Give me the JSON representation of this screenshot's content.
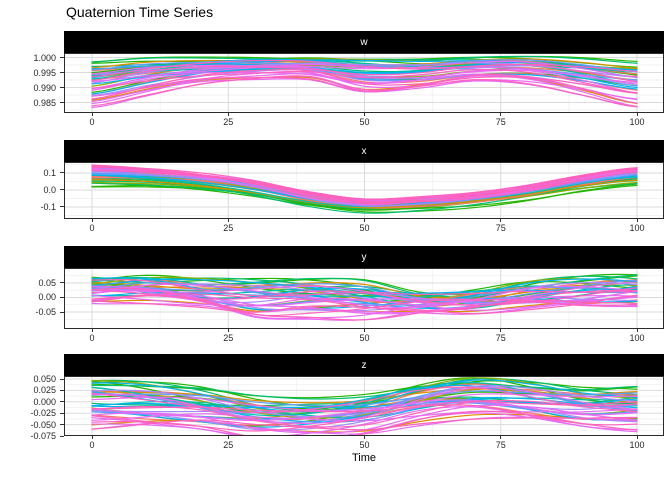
{
  "title": "Quaternion Time Series",
  "chart_data": {
    "type": "line",
    "title": "Quaternion Time Series",
    "xlabel": "Time",
    "xlim": [
      0,
      100
    ],
    "x_ticks": [
      0,
      25,
      50,
      75,
      100
    ],
    "grid": "major+minor",
    "legend": "none",
    "strip_style": {
      "background": "#000000",
      "text": "#ffffff"
    },
    "palette": [
      "#F8766D",
      "#DB8E00",
      "#B79F00",
      "#8CAB00",
      "#24B700",
      "#00BE70",
      "#00C1AB",
      "#00B2F3",
      "#619CFF",
      "#A58AFF",
      "#E76BF3",
      "#FF62BC"
    ],
    "n_series": 44,
    "series_model": "value(t) = mean(t) + dev*envelope(t) + a*wiggle_amp*sin(2*pi*wiggle_freq*t/100 + p + wiggle_phase); dev = series.d or series.e per facet dev_key; envelope = up if dev>=0 else dn",
    "facets": [
      {
        "label": "w",
        "ylim": [
          0.9815,
          1.0015
        ],
        "tick_values": [
          1.0,
          0.995,
          0.99,
          0.985
        ],
        "tick_labels": [
          "1.000",
          "0.995",
          "0.990",
          "0.985"
        ],
        "dev_key": "d",
        "mean": [
          0.9925,
          0.995,
          0.9966,
          0.9973,
          0.9974,
          0.996,
          0.9958,
          0.997,
          0.9971,
          0.9952,
          0.9927
        ],
        "up": [
          0.006,
          0.0045,
          0.0032,
          0.0028,
          0.0026,
          0.0038,
          0.0036,
          0.0028,
          0.0028,
          0.0044,
          0.0062
        ],
        "dn": [
          0.0075,
          0.006,
          0.0042,
          0.0038,
          0.004,
          0.007,
          0.0055,
          0.0038,
          0.0045,
          0.0062,
          0.008
        ],
        "wiggle_amp": 0.0009,
        "wiggle_freq": 1.4,
        "wiggle_phase": 0.0
      },
      {
        "label": "x",
        "ylim": [
          -0.1706,
          0.1647
        ],
        "tick_values": [
          0.1,
          0.0,
          -0.1
        ],
        "tick_labels": [
          "0.1",
          "0.0",
          "-0.1"
        ],
        "dev_key": "e",
        "mean": [
          0.085,
          0.075,
          0.05,
          0.005,
          -0.055,
          -0.09,
          -0.08,
          -0.055,
          -0.015,
          0.04,
          0.08
        ],
        "up": [
          0.055,
          0.05,
          0.045,
          0.045,
          0.04,
          0.03,
          0.03,
          0.03,
          0.035,
          0.04,
          0.05
        ],
        "dn": [
          0.06,
          0.055,
          0.05,
          0.045,
          0.04,
          0.038,
          0.035,
          0.035,
          0.035,
          0.04,
          0.05
        ],
        "wiggle_amp": 0.011,
        "wiggle_freq": 1.1,
        "wiggle_phase": 1.0
      },
      {
        "label": "y",
        "ylim": [
          -0.1086,
          0.1017
        ],
        "tick_values": [
          0.05,
          0.0,
          -0.05
        ],
        "tick_labels": [
          "0.05",
          "0.00",
          "-0.05"
        ],
        "dev_key": "d",
        "mean": [
          0.03,
          0.035,
          0.02,
          0.01,
          0.01,
          0.0,
          -0.015,
          -0.01,
          0.01,
          0.02,
          0.025
        ],
        "up": [
          0.04,
          0.035,
          0.04,
          0.045,
          0.045,
          0.05,
          0.03,
          0.03,
          0.04,
          0.045,
          0.045
        ],
        "dn": [
          0.035,
          0.04,
          0.045,
          0.07,
          0.06,
          0.05,
          0.025,
          0.03,
          0.04,
          0.045,
          0.035
        ],
        "wiggle_amp": 0.02,
        "wiggle_freq": 1.6,
        "wiggle_phase": 2.5
      },
      {
        "label": "z",
        "ylim": [
          -0.075,
          0.0566
        ],
        "tick_values": [
          0.05,
          0.025,
          0.0,
          -0.025,
          -0.05,
          -0.075
        ],
        "tick_labels": [
          "0.050",
          "0.025",
          "0.000",
          "-0.025",
          "-0.050",
          "-0.075"
        ],
        "dev_key": "d",
        "mean": [
          0.005,
          0.0,
          -0.012,
          -0.028,
          -0.03,
          -0.02,
          0.005,
          0.02,
          0.01,
          -0.005,
          -0.008
        ],
        "up": [
          0.045,
          0.042,
          0.04,
          0.035,
          0.032,
          0.035,
          0.035,
          0.032,
          0.03,
          0.03,
          0.035
        ],
        "dn": [
          0.058,
          0.05,
          0.038,
          0.035,
          0.035,
          0.04,
          0.045,
          0.05,
          0.045,
          0.04,
          0.04
        ],
        "wiggle_amp": 0.013,
        "wiggle_freq": 1.4,
        "wiggle_phase": 4.2
      }
    ],
    "series": [
      {
        "c": 4,
        "d": 0.95,
        "e": -0.55,
        "p": 0.5,
        "a": 0.7
      },
      {
        "c": 4,
        "d": 0.8,
        "e": -0.75,
        "p": 2.1,
        "a": 1.0
      },
      {
        "c": 4,
        "d": 0.55,
        "e": -0.9,
        "p": 4.0,
        "a": 1.2
      },
      {
        "c": 4,
        "d": 0.3,
        "e": -0.45,
        "p": 1.2,
        "a": 0.8
      },
      {
        "c": 4,
        "d": -0.4,
        "e": -1.0,
        "p": 5.0,
        "a": 1.3
      },
      {
        "c": 5,
        "d": 0.9,
        "e": -0.35,
        "p": 0.9,
        "a": 0.8
      },
      {
        "c": 5,
        "d": 0.7,
        "e": -0.6,
        "p": 2.8,
        "a": 1.1
      },
      {
        "c": 5,
        "d": 0.45,
        "e": -0.2,
        "p": 4.6,
        "a": 0.9
      },
      {
        "c": 5,
        "d": 0.2,
        "e": -0.8,
        "p": 0.2,
        "a": 1.4
      },
      {
        "c": 3,
        "d": 0.65,
        "e": -0.5,
        "p": 3.3,
        "a": 1.0
      },
      {
        "c": 3,
        "d": -0.2,
        "e": -0.15,
        "p": 5.7,
        "a": 1.2
      },
      {
        "c": 2,
        "d": 0.1,
        "e": 0.05,
        "p": 2.5,
        "a": 0.9
      },
      {
        "c": 0,
        "d": 0.4,
        "e": 0.45,
        "p": 1.8,
        "a": 0.8
      },
      {
        "c": 0,
        "d": 0.15,
        "e": 0.1,
        "p": 3.9,
        "a": 1.1
      },
      {
        "c": 0,
        "d": -0.55,
        "e": -0.25,
        "p": 5.4,
        "a": 0.9
      },
      {
        "c": 1,
        "d": 0.6,
        "e": 0.3,
        "p": 0.7,
        "a": 0.8
      },
      {
        "c": 1,
        "d": -0.95,
        "e": -0.4,
        "p": 2.0,
        "a": 0.5
      },
      {
        "c": 6,
        "d": 0.35,
        "e": 0.2,
        "p": 4.3,
        "a": 1.0
      },
      {
        "c": 6,
        "d": -0.1,
        "e": -0.1,
        "p": 1.5,
        "a": 1.2
      },
      {
        "c": 7,
        "d": 0.6,
        "e": 0.85,
        "p": 3.0,
        "a": 0.9
      },
      {
        "c": 7,
        "d": 0.35,
        "e": 0.6,
        "p": 5.1,
        "a": 1.1
      },
      {
        "c": 7,
        "d": 0.05,
        "e": 0.35,
        "p": 0.4,
        "a": 1.3
      },
      {
        "c": 7,
        "d": -0.25,
        "e": 0.1,
        "p": 2.2,
        "a": 0.8
      },
      {
        "c": 7,
        "d": -0.5,
        "e": 0.5,
        "p": 4.8,
        "a": 1.0
      },
      {
        "c": 8,
        "d": 0.45,
        "e": 0.7,
        "p": 1.0,
        "a": 0.9
      },
      {
        "c": 8,
        "d": 0.0,
        "e": 0.4,
        "p": 3.6,
        "a": 1.1
      },
      {
        "c": 8,
        "d": -0.35,
        "e": 0.15,
        "p": 5.9,
        "a": 0.8
      },
      {
        "c": 9,
        "d": 0.25,
        "e": 0.55,
        "p": 2.7,
        "a": 1.0
      },
      {
        "c": 9,
        "d": -0.15,
        "e": 0.3,
        "p": 0.1,
        "a": 1.2
      },
      {
        "c": 9,
        "d": -0.6,
        "e": 0.75,
        "p": 4.1,
        "a": 0.9
      },
      {
        "c": 10,
        "d": 0.2,
        "e": 0.95,
        "p": 1.3,
        "a": 1.0
      },
      {
        "c": 10,
        "d": -0.05,
        "e": 0.8,
        "p": 3.2,
        "a": 1.2
      },
      {
        "c": 10,
        "d": -0.3,
        "e": 0.65,
        "p": 5.5,
        "a": 0.9
      },
      {
        "c": 10,
        "d": -0.55,
        "e": 0.5,
        "p": 0.8,
        "a": 1.1
      },
      {
        "c": 10,
        "d": -0.75,
        "e": 0.9,
        "p": 2.9,
        "a": 1.0
      },
      {
        "c": 10,
        "d": -0.9,
        "e": 0.7,
        "p": 4.4,
        "a": 1.3
      },
      {
        "c": 10,
        "d": -1.05,
        "e": 1.0,
        "p": 1.7,
        "a": 0.8
      },
      {
        "c": 10,
        "d": -1.15,
        "e": 0.85,
        "p": 3.8,
        "a": 1.0
      },
      {
        "c": 11,
        "d": 0.3,
        "e": 0.9,
        "p": 5.2,
        "a": 0.9
      },
      {
        "c": 11,
        "d": -0.1,
        "e": 0.75,
        "p": 0.6,
        "a": 1.1
      },
      {
        "c": 11,
        "d": -0.45,
        "e": 1.0,
        "p": 2.4,
        "a": 1.0
      },
      {
        "c": 11,
        "d": -0.7,
        "e": 0.6,
        "p": 4.9,
        "a": 1.2
      },
      {
        "c": 11,
        "d": -0.95,
        "e": 0.95,
        "p": 1.1,
        "a": 0.9
      },
      {
        "c": 11,
        "d": -1.1,
        "e": 0.8,
        "p": 3.5,
        "a": 1.1
      }
    ]
  }
}
